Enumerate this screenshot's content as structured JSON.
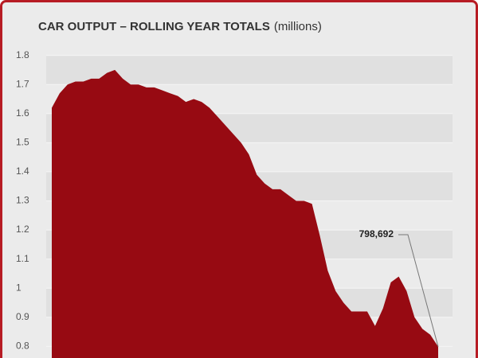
{
  "chart_data": {
    "type": "area",
    "title": "CAR OUTPUT – ROLLING YEAR TOTALS",
    "subtitle": "(millions)",
    "values": [
      1.62,
      1.67,
      1.7,
      1.71,
      1.71,
      1.72,
      1.72,
      1.74,
      1.75,
      1.72,
      1.7,
      1.7,
      1.69,
      1.69,
      1.68,
      1.67,
      1.66,
      1.64,
      1.65,
      1.64,
      1.62,
      1.59,
      1.56,
      1.53,
      1.5,
      1.46,
      1.39,
      1.36,
      1.34,
      1.34,
      1.32,
      1.3,
      1.3,
      1.29,
      1.18,
      1.06,
      0.99,
      0.95,
      0.92,
      0.92,
      0.92,
      0.87,
      0.93,
      1.02,
      1.04,
      0.99,
      0.9,
      0.86,
      0.84,
      0.798692
    ],
    "annotation": "798,692",
    "color": "#970a12",
    "ylim": [
      0.76,
      1.84
    ],
    "yticks": [
      0.8,
      0.9,
      1,
      1.1,
      1.2,
      1.3,
      1.4,
      1.5,
      1.6,
      1.7,
      1.8
    ],
    "grid": true
  }
}
